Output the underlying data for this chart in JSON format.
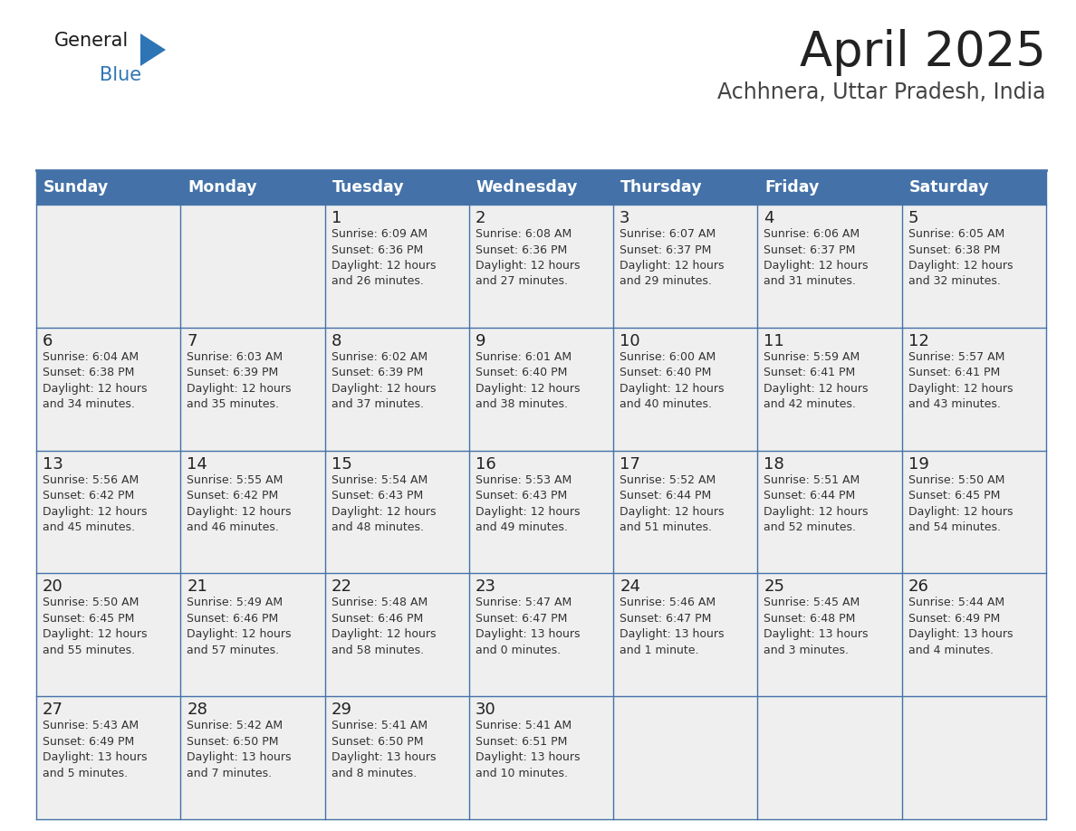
{
  "title": "April 2025",
  "subtitle": "Achhnera, Uttar Pradesh, India",
  "header_bg": "#4472a8",
  "header_text": "#ffffff",
  "header_days": [
    "Sunday",
    "Monday",
    "Tuesday",
    "Wednesday",
    "Thursday",
    "Friday",
    "Saturday"
  ],
  "row_bg": "#efefef",
  "cell_text_color": "#333333",
  "day_num_color": "#222222",
  "border_color": "#4472a8",
  "grid_line_color": "#4472a8",
  "title_color": "#222222",
  "subtitle_color": "#444444",
  "logo_general_color": "#1a1a1a",
  "logo_blue_color": "#2e75b6",
  "title_fontsize": 38,
  "subtitle_fontsize": 17,
  "header_fontsize": 12.5,
  "cell_fontsize": 9.0,
  "day_num_fontsize": 13,
  "weeks": [
    [
      {
        "day": null,
        "info": null
      },
      {
        "day": null,
        "info": null
      },
      {
        "day": 1,
        "info": "Sunrise: 6:09 AM\nSunset: 6:36 PM\nDaylight: 12 hours\nand 26 minutes."
      },
      {
        "day": 2,
        "info": "Sunrise: 6:08 AM\nSunset: 6:36 PM\nDaylight: 12 hours\nand 27 minutes."
      },
      {
        "day": 3,
        "info": "Sunrise: 6:07 AM\nSunset: 6:37 PM\nDaylight: 12 hours\nand 29 minutes."
      },
      {
        "day": 4,
        "info": "Sunrise: 6:06 AM\nSunset: 6:37 PM\nDaylight: 12 hours\nand 31 minutes."
      },
      {
        "day": 5,
        "info": "Sunrise: 6:05 AM\nSunset: 6:38 PM\nDaylight: 12 hours\nand 32 minutes."
      }
    ],
    [
      {
        "day": 6,
        "info": "Sunrise: 6:04 AM\nSunset: 6:38 PM\nDaylight: 12 hours\nand 34 minutes."
      },
      {
        "day": 7,
        "info": "Sunrise: 6:03 AM\nSunset: 6:39 PM\nDaylight: 12 hours\nand 35 minutes."
      },
      {
        "day": 8,
        "info": "Sunrise: 6:02 AM\nSunset: 6:39 PM\nDaylight: 12 hours\nand 37 minutes."
      },
      {
        "day": 9,
        "info": "Sunrise: 6:01 AM\nSunset: 6:40 PM\nDaylight: 12 hours\nand 38 minutes."
      },
      {
        "day": 10,
        "info": "Sunrise: 6:00 AM\nSunset: 6:40 PM\nDaylight: 12 hours\nand 40 minutes."
      },
      {
        "day": 11,
        "info": "Sunrise: 5:59 AM\nSunset: 6:41 PM\nDaylight: 12 hours\nand 42 minutes."
      },
      {
        "day": 12,
        "info": "Sunrise: 5:57 AM\nSunset: 6:41 PM\nDaylight: 12 hours\nand 43 minutes."
      }
    ],
    [
      {
        "day": 13,
        "info": "Sunrise: 5:56 AM\nSunset: 6:42 PM\nDaylight: 12 hours\nand 45 minutes."
      },
      {
        "day": 14,
        "info": "Sunrise: 5:55 AM\nSunset: 6:42 PM\nDaylight: 12 hours\nand 46 minutes."
      },
      {
        "day": 15,
        "info": "Sunrise: 5:54 AM\nSunset: 6:43 PM\nDaylight: 12 hours\nand 48 minutes."
      },
      {
        "day": 16,
        "info": "Sunrise: 5:53 AM\nSunset: 6:43 PM\nDaylight: 12 hours\nand 49 minutes."
      },
      {
        "day": 17,
        "info": "Sunrise: 5:52 AM\nSunset: 6:44 PM\nDaylight: 12 hours\nand 51 minutes."
      },
      {
        "day": 18,
        "info": "Sunrise: 5:51 AM\nSunset: 6:44 PM\nDaylight: 12 hours\nand 52 minutes."
      },
      {
        "day": 19,
        "info": "Sunrise: 5:50 AM\nSunset: 6:45 PM\nDaylight: 12 hours\nand 54 minutes."
      }
    ],
    [
      {
        "day": 20,
        "info": "Sunrise: 5:50 AM\nSunset: 6:45 PM\nDaylight: 12 hours\nand 55 minutes."
      },
      {
        "day": 21,
        "info": "Sunrise: 5:49 AM\nSunset: 6:46 PM\nDaylight: 12 hours\nand 57 minutes."
      },
      {
        "day": 22,
        "info": "Sunrise: 5:48 AM\nSunset: 6:46 PM\nDaylight: 12 hours\nand 58 minutes."
      },
      {
        "day": 23,
        "info": "Sunrise: 5:47 AM\nSunset: 6:47 PM\nDaylight: 13 hours\nand 0 minutes."
      },
      {
        "day": 24,
        "info": "Sunrise: 5:46 AM\nSunset: 6:47 PM\nDaylight: 13 hours\nand 1 minute."
      },
      {
        "day": 25,
        "info": "Sunrise: 5:45 AM\nSunset: 6:48 PM\nDaylight: 13 hours\nand 3 minutes."
      },
      {
        "day": 26,
        "info": "Sunrise: 5:44 AM\nSunset: 6:49 PM\nDaylight: 13 hours\nand 4 minutes."
      }
    ],
    [
      {
        "day": 27,
        "info": "Sunrise: 5:43 AM\nSunset: 6:49 PM\nDaylight: 13 hours\nand 5 minutes."
      },
      {
        "day": 28,
        "info": "Sunrise: 5:42 AM\nSunset: 6:50 PM\nDaylight: 13 hours\nand 7 minutes."
      },
      {
        "day": 29,
        "info": "Sunrise: 5:41 AM\nSunset: 6:50 PM\nDaylight: 13 hours\nand 8 minutes."
      },
      {
        "day": 30,
        "info": "Sunrise: 5:41 AM\nSunset: 6:51 PM\nDaylight: 13 hours\nand 10 minutes."
      },
      {
        "day": null,
        "info": null
      },
      {
        "day": null,
        "info": null
      },
      {
        "day": null,
        "info": null
      }
    ]
  ]
}
